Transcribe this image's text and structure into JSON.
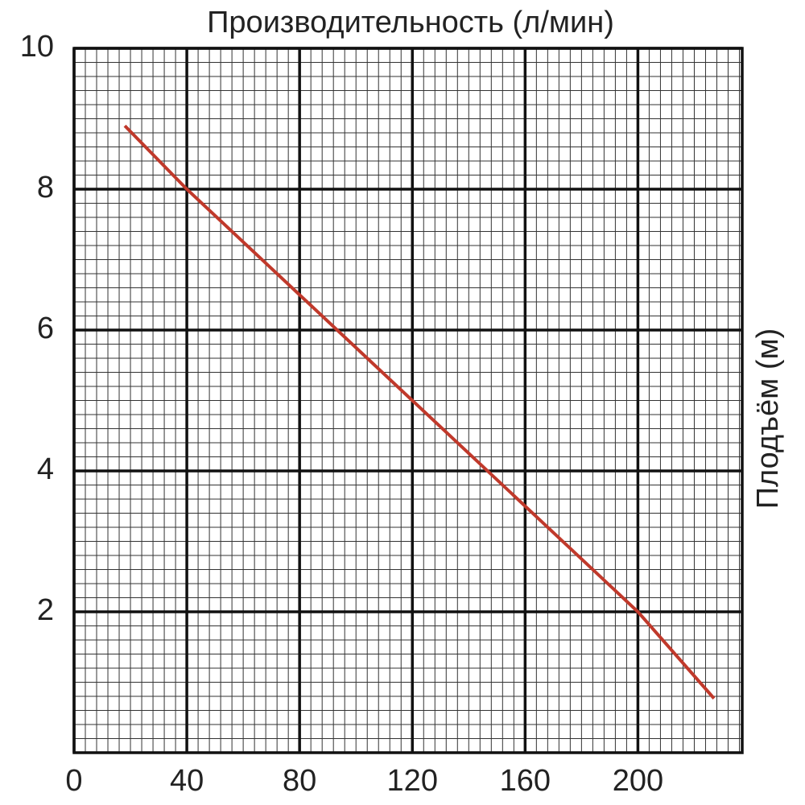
{
  "chart_data": {
    "type": "line",
    "title": "Производительность (л/мин)",
    "y_label": "Плодъём (м)",
    "x": [
      18,
      40,
      120,
      200,
      227
    ],
    "series": [
      {
        "name": null,
        "color": "#c0392b",
        "values": [
          8.9,
          8,
          5,
          2,
          0.77
        ]
      }
    ],
    "xlim": [
      0,
      237
    ],
    "ylim": [
      0,
      10
    ],
    "xticks": [
      0,
      40,
      80,
      120,
      160,
      200
    ],
    "yticks": [
      2,
      4,
      6,
      8,
      10
    ],
    "grid": true,
    "minor_grid": {
      "x": 4,
      "y": 0.2
    }
  }
}
